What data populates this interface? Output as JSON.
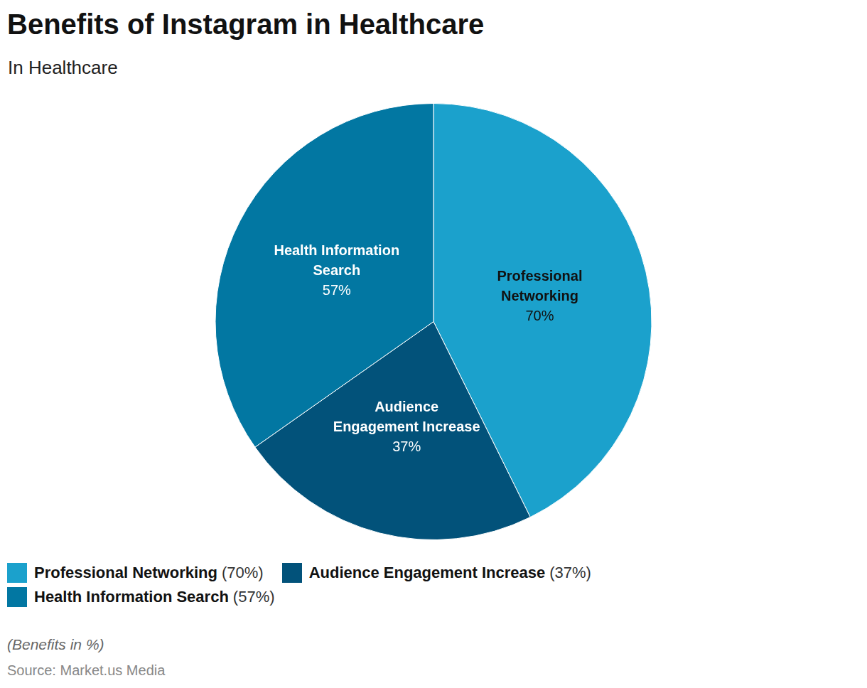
{
  "chart_data": {
    "type": "pie",
    "title": "Benefits of Instagram in Healthcare",
    "subtitle": "In Healthcare",
    "categories": [
      "Professional Networking",
      "Audience Engagement Increase",
      "Health Information Search"
    ],
    "values": [
      70,
      37,
      57
    ],
    "value_labels": [
      "70%",
      "37%",
      "57%"
    ],
    "colors": [
      "#1ba1cc",
      "#02527a",
      "#0277a2"
    ],
    "data_labels": true,
    "legend": "bottom",
    "note": "(Benefits in %)",
    "source": "Source: Market.us Media"
  }
}
